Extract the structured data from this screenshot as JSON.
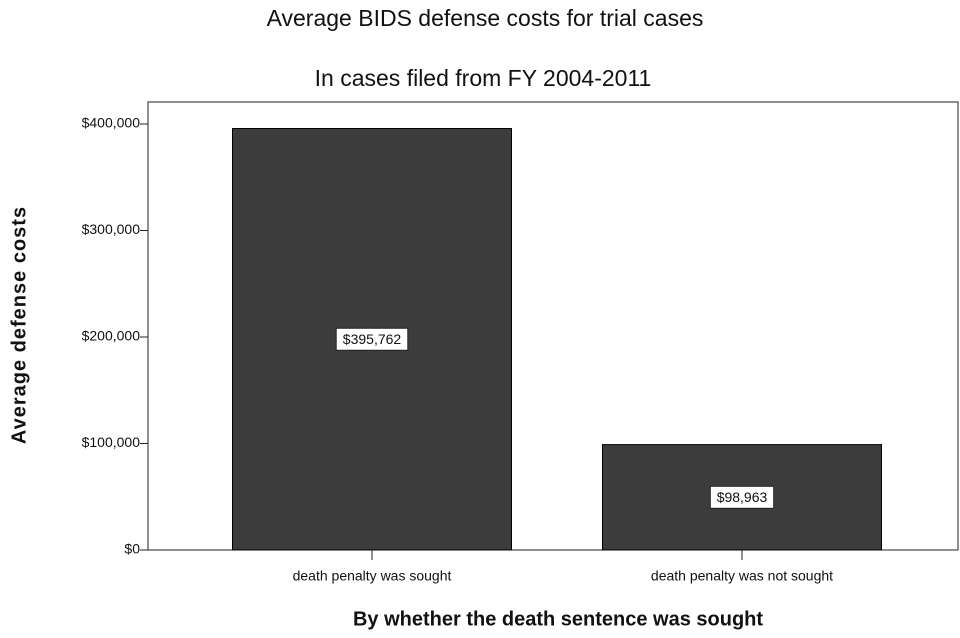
{
  "chart_data": {
    "type": "bar",
    "title": "Average BIDS defense costs for trial cases",
    "subtitle": "In cases filed from FY 2004-2011",
    "x_label": "By whether the death sentence was sought",
    "y_label": "Average defense costs",
    "categories": [
      "death penalty was sought",
      "death penalty was not sought"
    ],
    "values": [
      395762,
      98963
    ],
    "value_labels": [
      "$395,762",
      "$98,963"
    ],
    "color": "#3c3c3c",
    "ylim": [
      0,
      420000
    ],
    "yticks": [
      {
        "value": 0,
        "label": "$0"
      },
      {
        "value": 100000,
        "label": "$100,000"
      },
      {
        "value": 200000,
        "label": "$200,000"
      },
      {
        "value": 300000,
        "label": "$300,000"
      },
      {
        "value": 400000,
        "label": "$400,000"
      }
    ]
  }
}
